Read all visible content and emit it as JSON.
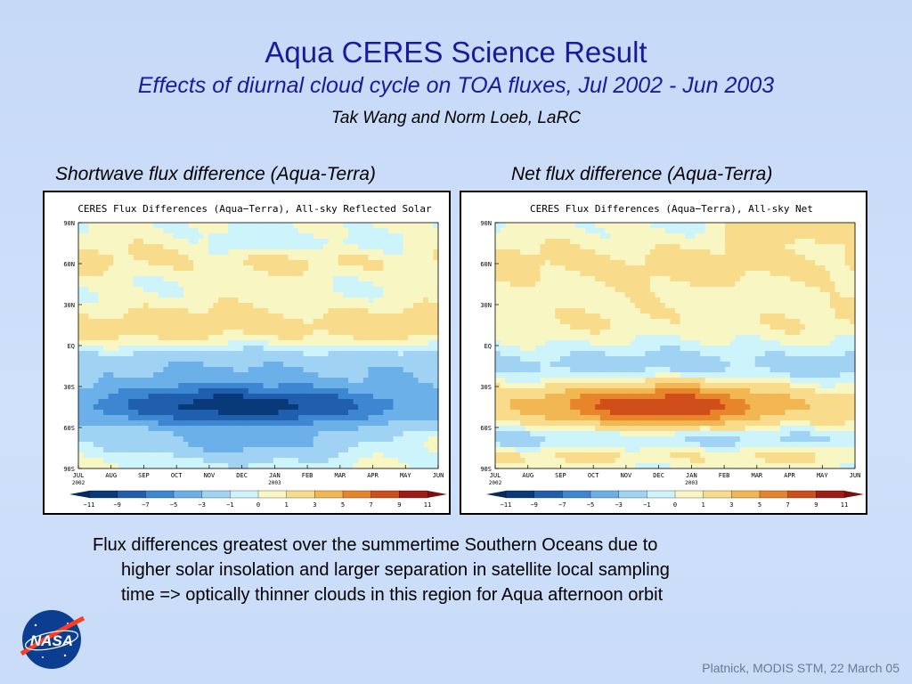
{
  "title": "Aqua CERES Science Result",
  "subtitle": "Effects of diurnal cloud cycle on TOA fluxes, Jul 2002 - Jun 2003",
  "authors": "Tak Wang and Norm Loeb, LaRC",
  "panels": [
    {
      "caption": "Shortwave flux difference (Aqua-Terra)",
      "plot_title": "CERES Flux Differences (Aqua−Terra), All-sky Reflected Solar"
    },
    {
      "caption": "Net flux difference (Aqua-Terra)",
      "plot_title": "CERES Flux Differences (Aqua−Terra), All-sky Net"
    }
  ],
  "lat_ticks": [
    "90N",
    "60N",
    "30N",
    "EQ",
    "30S",
    "60S",
    "90S"
  ],
  "month_ticks": [
    "JUL",
    "AUG",
    "SEP",
    "OCT",
    "NOV",
    "DEC",
    "JAN",
    "FEB",
    "MAR",
    "APR",
    "MAY",
    "JUN"
  ],
  "year_labels": {
    "jul": "2002",
    "jan": "2003"
  },
  "colorbar_labels": [
    "−11",
    "−9",
    "−7",
    "−5",
    "−3",
    "−1",
    "0",
    "1",
    "3",
    "5",
    "7",
    "9",
    "11"
  ],
  "colorbar_colors": [
    "#083a7a",
    "#1f5fae",
    "#3d86d2",
    "#6bb0e8",
    "#9fd2f3",
    "#cdf3fb",
    "#f8f6c2",
    "#f8dc8c",
    "#f2b653",
    "#e8842a",
    "#cf4e1a",
    "#a01c14"
  ],
  "bullet": {
    "line1": "Flux differences greatest over the summertime Southern Oceans due to",
    "line2": "higher solar insolation and larger separation in satellite local sampling",
    "line3": "time  => optically thinner clouds in this region for Aqua afternoon orbit"
  },
  "logo_text": "NASA",
  "footer": "Platnick, MODIS STM, 22 March 05"
}
